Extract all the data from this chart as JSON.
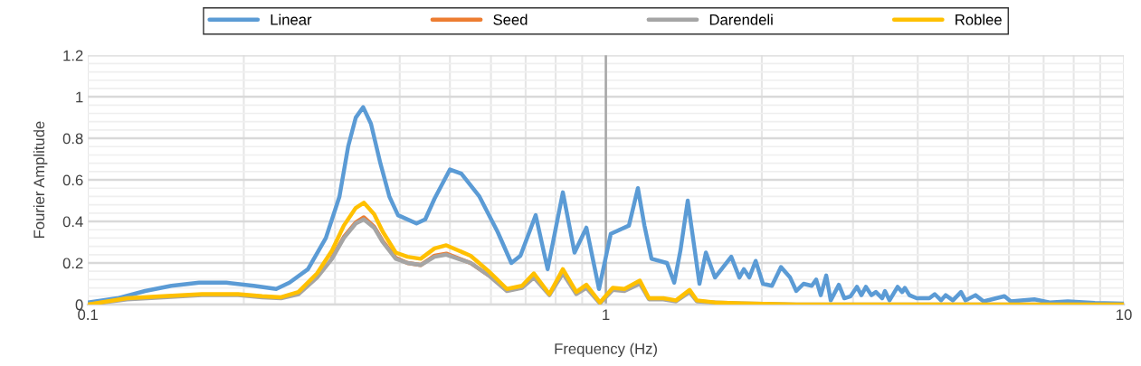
{
  "chart_data": {
    "type": "line",
    "xlabel": "Frequency (Hz)",
    "ylabel": "Fourier Amplitude",
    "log": "x",
    "xlim": [
      0.1,
      10
    ],
    "xticks": [
      0.1,
      1,
      10
    ],
    "ylim": [
      0,
      1.2
    ],
    "yticks": [
      0,
      0.2,
      0.4,
      0.6,
      0.8,
      1,
      1.2
    ],
    "grid": true,
    "legend": "top",
    "marker": "none",
    "line_style": "solid",
    "ref_lines": [
      {
        "axis": "x",
        "value": 1,
        "label": null,
        "color": "#a6a6a6"
      }
    ],
    "series": [
      {
        "name": "Linear",
        "color": "#5b9bd5",
        "x": [
          0.1,
          0.114,
          0.129,
          0.145,
          0.164,
          0.185,
          0.209,
          0.231,
          0.245,
          0.266,
          0.288,
          0.306,
          0.318,
          0.329,
          0.34,
          0.352,
          0.367,
          0.382,
          0.397,
          0.431,
          0.448,
          0.467,
          0.5,
          0.526,
          0.57,
          0.618,
          0.657,
          0.684,
          0.732,
          0.772,
          0.826,
          0.87,
          0.917,
          0.97,
          1.022,
          1.108,
          1.153,
          1.187,
          1.225,
          1.312,
          1.355,
          1.393,
          1.439,
          1.516,
          1.56,
          1.624,
          1.746,
          1.81,
          1.847,
          1.892,
          1.946,
          2.01,
          2.092,
          2.178,
          2.268,
          2.331,
          2.408,
          2.497,
          2.547,
          2.599,
          2.663,
          2.717,
          2.817,
          2.886,
          2.968,
          3.052,
          3.114,
          3.177,
          3.255,
          3.321,
          3.416,
          3.457,
          3.528,
          3.658,
          3.733,
          3.778,
          3.855,
          3.981,
          4.212,
          4.314,
          4.438,
          4.528,
          4.676,
          4.848,
          4.946,
          5.17,
          5.361,
          5.881,
          6.049,
          6.716,
          7.192,
          7.794,
          8.792,
          10
        ],
        "values": [
          0.01,
          0.03,
          0.065,
          0.09,
          0.105,
          0.105,
          0.09,
          0.075,
          0.105,
          0.17,
          0.32,
          0.52,
          0.76,
          0.9,
          0.95,
          0.87,
          0.68,
          0.52,
          0.43,
          0.39,
          0.41,
          0.51,
          0.65,
          0.63,
          0.52,
          0.35,
          0.2,
          0.235,
          0.43,
          0.17,
          0.54,
          0.25,
          0.37,
          0.075,
          0.34,
          0.38,
          0.56,
          0.38,
          0.22,
          0.2,
          0.105,
          0.26,
          0.5,
          0.1,
          0.25,
          0.13,
          0.23,
          0.13,
          0.17,
          0.13,
          0.21,
          0.1,
          0.09,
          0.18,
          0.13,
          0.065,
          0.1,
          0.09,
          0.12,
          0.045,
          0.14,
          0.02,
          0.095,
          0.03,
          0.04,
          0.085,
          0.045,
          0.085,
          0.045,
          0.06,
          0.03,
          0.065,
          0.02,
          0.085,
          0.06,
          0.08,
          0.045,
          0.03,
          0.03,
          0.05,
          0.02,
          0.045,
          0.02,
          0.06,
          0.02,
          0.045,
          0.015,
          0.04,
          0.015,
          0.025,
          0.01,
          0.015,
          0.008,
          0.004
        ]
      },
      {
        "name": "Seed",
        "color": "#ed7d31",
        "x": [
          0.296,
          0.312,
          0.329,
          0.341,
          0.357,
          0.371,
          0.393,
          0.414,
          0.439,
          0.467,
          0.492,
          0.548,
          0.594
        ],
        "values": [
          0.225,
          0.325,
          0.395,
          0.42,
          0.375,
          0.305,
          0.225,
          0.2,
          0.19,
          0.235,
          0.245,
          0.2,
          0.14
        ]
      },
      {
        "name": "Darendeli",
        "color": "#a5a5a5",
        "x": [
          0.1,
          0.119,
          0.14,
          0.166,
          0.195,
          0.217,
          0.236,
          0.255,
          0.277,
          0.296,
          0.312,
          0.329,
          0.341,
          0.357,
          0.371,
          0.393,
          0.414,
          0.439,
          0.467,
          0.492,
          0.548,
          0.594,
          0.644,
          0.689,
          0.726,
          0.778,
          0.826,
          0.877,
          0.917,
          0.974,
          1.031,
          1.086,
          1.163,
          1.211,
          1.291,
          1.366,
          1.451,
          1.498,
          1.624,
          1.832,
          2.331,
          3.778,
          10
        ],
        "values": [
          0,
          0.025,
          0.035,
          0.045,
          0.045,
          0.035,
          0.03,
          0.05,
          0.13,
          0.22,
          0.32,
          0.39,
          0.41,
          0.37,
          0.3,
          0.22,
          0.2,
          0.19,
          0.23,
          0.24,
          0.2,
          0.14,
          0.065,
          0.08,
          0.13,
          0.045,
          0.15,
          0.05,
          0.08,
          0.005,
          0.07,
          0.065,
          0.1,
          0.025,
          0.025,
          0.015,
          0.06,
          0.015,
          0.01,
          0.005,
          0,
          0,
          0
        ]
      },
      {
        "name": "Roblee",
        "color": "#ffc000",
        "x": [
          0.1,
          0.119,
          0.14,
          0.166,
          0.195,
          0.217,
          0.236,
          0.255,
          0.277,
          0.296,
          0.312,
          0.329,
          0.341,
          0.357,
          0.371,
          0.393,
          0.414,
          0.439,
          0.467,
          0.492,
          0.548,
          0.594,
          0.644,
          0.689,
          0.726,
          0.778,
          0.826,
          0.877,
          0.917,
          0.974,
          1.031,
          1.086,
          1.163,
          1.211,
          1.291,
          1.366,
          1.451,
          1.498,
          1.624,
          1.832,
          2.331,
          3.778,
          10
        ],
        "values": [
          0,
          0.03,
          0.04,
          0.05,
          0.05,
          0.04,
          0.035,
          0.06,
          0.15,
          0.26,
          0.38,
          0.465,
          0.49,
          0.435,
          0.35,
          0.25,
          0.23,
          0.22,
          0.27,
          0.285,
          0.235,
          0.16,
          0.075,
          0.09,
          0.15,
          0.05,
          0.17,
          0.06,
          0.095,
          0.01,
          0.08,
          0.075,
          0.115,
          0.03,
          0.03,
          0.02,
          0.07,
          0.02,
          0.01,
          0.005,
          0,
          0,
          0
        ]
      }
    ]
  }
}
